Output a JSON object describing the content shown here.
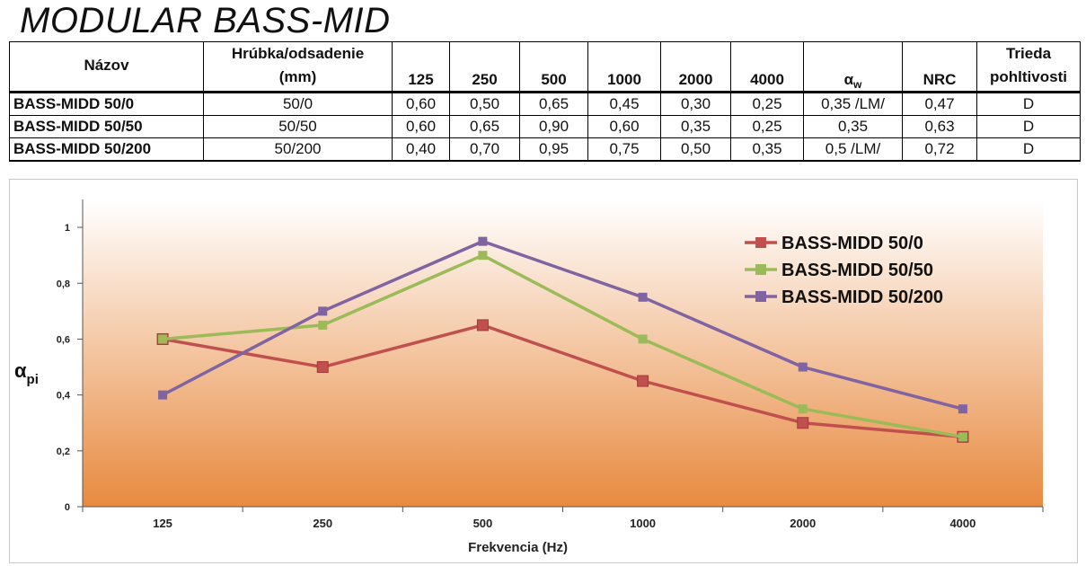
{
  "title": "MODULAR BASS-MID",
  "table": {
    "headers": {
      "name": "Názov",
      "thickness_line1": "Hrúbka/odsadenie",
      "thickness_line2": "(mm)",
      "f125": "125",
      "f250": "250",
      "f500": "500",
      "f1000": "1000",
      "f2000": "2000",
      "f4000": "4000",
      "alpha_w_symbol": "α",
      "alpha_w_sub": "w",
      "nrc": "NRC",
      "class_line1": "Trieda",
      "class_line2": "pohltivosti"
    },
    "rows": [
      {
        "name": "BASS-MIDD 50/0",
        "thickness": "50/0",
        "v125": "0,60",
        "v250": "0,50",
        "v500": "0,65",
        "v1000": "0,45",
        "v2000": "0,30",
        "v4000": "0,25",
        "alpha_w": "0,35 /LM/",
        "nrc": "0,47",
        "class": "D"
      },
      {
        "name": "BASS-MIDD 50/50",
        "thickness": "50/50",
        "v125": "0,60",
        "v250": "0,65",
        "v500": "0,90",
        "v1000": "0,60",
        "v2000": "0,35",
        "v4000": "0,25",
        "alpha_w": "0,35",
        "nrc": "0,63",
        "class": "D"
      },
      {
        "name": "BASS-MIDD 50/200",
        "thickness": "50/200",
        "v125": "0,40",
        "v250": "0,70",
        "v500": "0,95",
        "v1000": "0,75",
        "v2000": "0,50",
        "v4000": "0,35",
        "alpha_w": "0,5 /LM/",
        "nrc": "0,72",
        "class": "D"
      }
    ]
  },
  "colors": {
    "series_red": "#c0504d",
    "series_green": "#9bbb59",
    "series_purple": "#8064a2",
    "plot_top": "#ffffff",
    "plot_bottom": "#e88a40"
  },
  "chart_data": {
    "type": "line",
    "categories": [
      "125",
      "250",
      "500",
      "1000",
      "2000",
      "4000"
    ],
    "series": [
      {
        "name": "BASS-MIDD 50/0",
        "values": [
          0.6,
          0.5,
          0.65,
          0.45,
          0.3,
          0.25
        ],
        "color": "#c0504d",
        "marker": "square"
      },
      {
        "name": "BASS-MIDD 50/50",
        "values": [
          0.6,
          0.65,
          0.9,
          0.6,
          0.35,
          0.25
        ],
        "color": "#9bbb59",
        "marker": "square"
      },
      {
        "name": "BASS-MIDD 50/200",
        "values": [
          0.4,
          0.7,
          0.95,
          0.75,
          0.5,
          0.35
        ],
        "color": "#8064a2",
        "marker": "square"
      }
    ],
    "xlabel": "Frekvencia (Hz)",
    "ylabel_symbol": "α",
    "ylabel_sub": "pi",
    "ylim": [
      0,
      1.1
    ],
    "yticks": [
      0,
      0.2,
      0.4,
      0.6,
      0.8,
      1
    ],
    "ytick_labels": [
      "0",
      "0,2",
      "0,4",
      "0,6",
      "0,8",
      "1"
    ],
    "grid": false,
    "legend": "top-right"
  }
}
